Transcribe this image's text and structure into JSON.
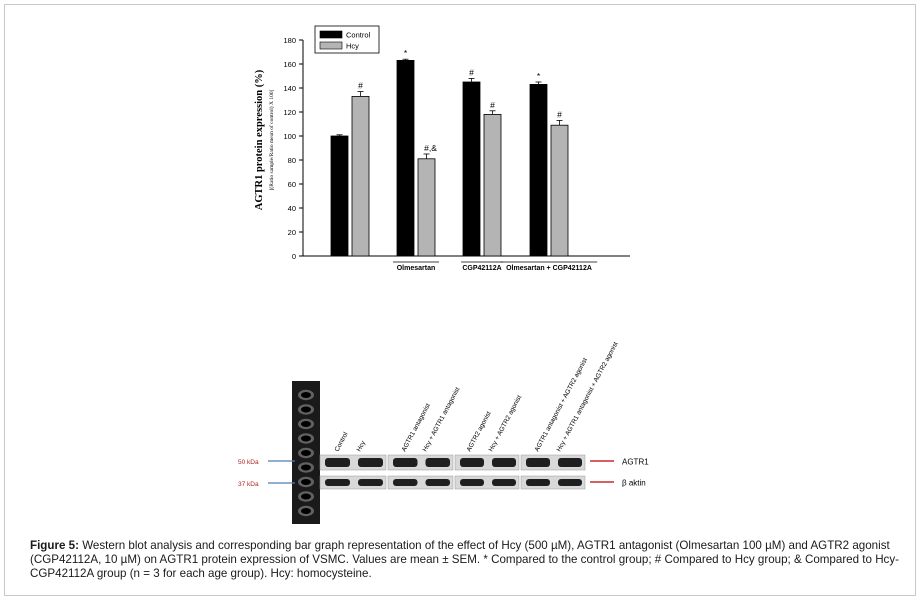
{
  "chart_data": {
    "type": "bar",
    "ylabel": "AGTR1 protein expression (%)",
    "ylabel_formula": "[(Ratio sample/Ratio mean of control) X 100]",
    "ylim": [
      0,
      180
    ],
    "yticks": [
      0,
      20,
      40,
      60,
      80,
      100,
      120,
      140,
      160,
      180
    ],
    "legend": {
      "position": "top-left",
      "entries": [
        "Control",
        "Hcy"
      ]
    },
    "groups": [
      "",
      "Olmesartan",
      "CGP42112A",
      "Olmesartan + CGP42112A"
    ],
    "series": [
      {
        "name": "Control",
        "color": "#000000",
        "values": [
          100,
          163,
          145,
          143
        ],
        "errors": [
          1,
          1,
          3,
          2
        ],
        "annotations": [
          "",
          "*",
          "#",
          "*"
        ]
      },
      {
        "name": "Hcy",
        "color": "#b4b4b4",
        "values": [
          133,
          81,
          118,
          109
        ],
        "errors": [
          4,
          4,
          3,
          4
        ],
        "annotations": [
          "#",
          "#,&",
          "#",
          "#"
        ]
      }
    ]
  },
  "blot": {
    "lane_labels": [
      "Control",
      "Hcy",
      "AGTR1 antagonist",
      "Hcy + AGTR1 antagonist",
      "AGTR2 agonist",
      "Hcy + AGTR2 agonist",
      "AGTR1 antagonist + AGTR2 agonist",
      "Hcy + AGTR1 antagonist + AGTR2 agonist"
    ],
    "marker_labels": [
      "50 kDa",
      "37 kDa"
    ],
    "band_labels": [
      "AGTR1",
      "β aktin"
    ],
    "marker_color": "#b22222",
    "arrow_color": "#cc2a2a"
  },
  "caption": {
    "label": "Figure 5:",
    "text": " Western blot analysis and corresponding bar graph representation of the effect of Hcy (500 µM), AGTR1 antagonist (Olmesartan 100 µM) and AGTR2 agonist (CGP42112A, 10 µM) on AGTR1 protein expression of VSMC. Values are mean ± SEM. * Compared to the control group; # Compared to Hcy group; & Compared to Hcy-CGP42112A group (n = 3 for each age group). Hcy: homocysteine."
  }
}
